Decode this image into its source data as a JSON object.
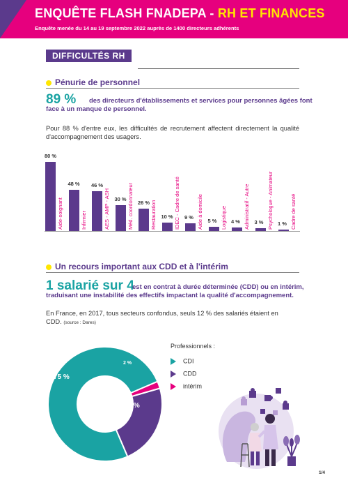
{
  "header": {
    "title_white": "ENQUÊTE FLASH FNADEPA - ",
    "title_yellow": "RH ET FINANCES",
    "subtitle": "Enquête menée du 14 au 19 septembre 2022 auprès de 1400 directeurs adhérents"
  },
  "section": {
    "tag": "DIFFICULTÉS RH"
  },
  "penurie": {
    "heading": "Pénurie de personnel",
    "big_value": "89 %",
    "statement_line1": "des directeurs d'établissements et services pour personnes âgées font",
    "statement_line2": "face à un manque de personnel.",
    "note": "Pour 88 % d'entre eux, les difficultés de recrutement affectent directement la qualité d'accompagnement des usagers."
  },
  "chart_data": {
    "type": "bar",
    "categories": [
      "Aide-soignant",
      "Infirmier",
      "AES - AMP - ASH",
      "Méd. coordonnateur",
      "Restauration",
      "IDEC - Cadre de santé",
      "Aide à domicile",
      "Logistique",
      "Administratif - Autre",
      "Psychologue - Animateur",
      "Cadre de santé"
    ],
    "values": [
      80,
      48,
      46,
      30,
      26,
      10,
      9,
      5,
      4,
      3,
      1
    ],
    "value_labels": [
      "80 %",
      "48 %",
      "46 %",
      "30 %",
      "26 %",
      "10 %",
      "9 %",
      "5 %",
      "4 %",
      "3 %",
      "1 %"
    ],
    "ylim": [
      0,
      80
    ],
    "colors": {
      "bar": "#5b3a8c",
      "label": "#e6007e"
    }
  },
  "cdd": {
    "heading": "Un recours important aux CDD et à l'intérim",
    "big_value": "1 salarié sur 4",
    "statement_line1": "est en contrat à durée déterminée (CDD) ou en intérim,",
    "statement_line2": "traduisant une instabilité des effectifs impactant la qualité d'accompagnement.",
    "note_line1": "En France, en 2017, tous secteurs confondus, seuls 12 % des salariés étaient en",
    "note_line2": "CDD.",
    "source": "(source : Dares)"
  },
  "donut": {
    "legend_title": "Professionnels :",
    "slices": [
      {
        "name": "CDI",
        "value": 75,
        "label": "75 %",
        "color": "#1aa3a3"
      },
      {
        "name": "CDD",
        "value": 23,
        "label": "23 %",
        "color": "#5b3a8c"
      },
      {
        "name": "intérim",
        "value": 2,
        "label": "2 %",
        "color": "#e6007e"
      }
    ]
  },
  "footer": {
    "page": "1/4"
  }
}
